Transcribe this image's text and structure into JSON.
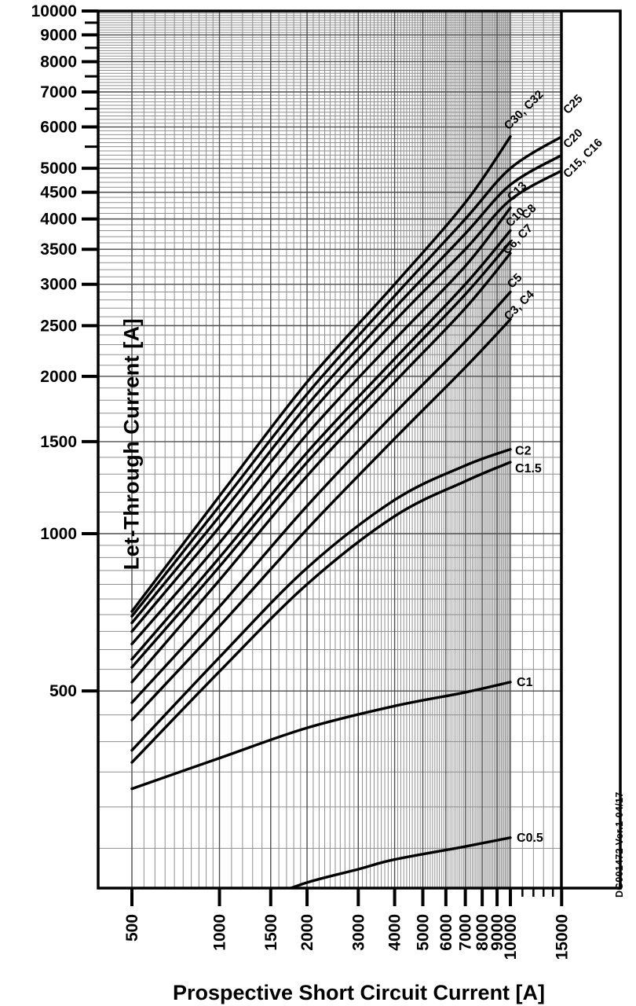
{
  "figure": {
    "y_axis_title": "Let-Through Current [A]",
    "x_axis_title": "Prospective Short Circuit Current [A]",
    "side_note": "DG001472  Ver.1-04/17"
  },
  "chart_data": {
    "type": "line",
    "title": "",
    "xlabel": "Prospective Short Circuit Current [A]",
    "ylabel": "Let-Through Current [A]",
    "x_scale": "log",
    "y_scale": "log",
    "xlim": [
      500,
      15000
    ],
    "ylim": [
      200,
      10000
    ],
    "grid": "log major+minor, both axes",
    "legend_position": "labels at curve ends",
    "x_ticks": [
      500,
      1000,
      1500,
      2000,
      3000,
      4000,
      5000,
      6000,
      7000,
      8000,
      9000,
      10000,
      15000
    ],
    "x_minor_ticks": [
      11000,
      12000,
      13000,
      14000
    ],
    "y_ticks": [
      10000,
      9000,
      8000,
      7000,
      6000,
      5000,
      4500,
      4000,
      3500,
      3000,
      2500,
      2000,
      1500,
      1000,
      500
    ],
    "y_minor_ticks": [
      9500,
      8500,
      7500,
      6500,
      5500
    ],
    "colors": {
      "curve": "#000000",
      "grid_minor": "#8f8f8f",
      "grid_major": "#4d4d4d",
      "frame": "#000000",
      "text": "#000000"
    },
    "series": [
      {
        "name": "C30, C32",
        "label_rotated": true,
        "label_dx": -2,
        "label_dy": -8,
        "points": [
          [
            500,
            710
          ],
          [
            1000,
            1180
          ],
          [
            2000,
            1950
          ],
          [
            4000,
            3000
          ],
          [
            7000,
            4300
          ],
          [
            10000,
            5750
          ]
        ]
      },
      {
        "name": "C25",
        "label_rotated": true,
        "label_dx": 8,
        "label_dy": -28,
        "points": [
          [
            500,
            695
          ],
          [
            1000,
            1130
          ],
          [
            2000,
            1850
          ],
          [
            4000,
            2850
          ],
          [
            7000,
            4000
          ],
          [
            10000,
            5000
          ],
          [
            15000,
            5750
          ]
        ]
      },
      {
        "name": "C20",
        "label_rotated": true,
        "label_dx": 8,
        "label_dy": -8,
        "points": [
          [
            500,
            675
          ],
          [
            1000,
            1080
          ],
          [
            2000,
            1760
          ],
          [
            4000,
            2700
          ],
          [
            7000,
            3750
          ],
          [
            10000,
            4650
          ],
          [
            15000,
            5300
          ]
        ]
      },
      {
        "name": "C15, C16",
        "label_rotated": true,
        "label_dx": 8,
        "label_dy": 10,
        "points": [
          [
            500,
            650
          ],
          [
            1000,
            1030
          ],
          [
            2000,
            1670
          ],
          [
            4000,
            2550
          ],
          [
            7000,
            3500
          ],
          [
            10000,
            4350
          ],
          [
            15000,
            4950
          ]
        ]
      },
      {
        "name": "C13",
        "label_rotated": true,
        "label_dx": 2,
        "label_dy": -8,
        "points": [
          [
            500,
            615
          ],
          [
            1000,
            960
          ],
          [
            2000,
            1550
          ],
          [
            4000,
            2350
          ],
          [
            7000,
            3250
          ],
          [
            10000,
            4200
          ]
        ]
      },
      {
        "name": "C10",
        "label_rotated": true,
        "label_dx": 0,
        "label_dy": -4,
        "points": [
          [
            500,
            575
          ],
          [
            1000,
            900
          ],
          [
            2000,
            1430
          ],
          [
            4000,
            2160
          ],
          [
            7000,
            3000
          ],
          [
            10000,
            3800
          ]
        ]
      },
      {
        "name": "C8",
        "label_rotated": true,
        "label_dx": 20,
        "label_dy": -28,
        "points": [
          [
            500,
            555
          ],
          [
            1000,
            865
          ],
          [
            2000,
            1370
          ],
          [
            4000,
            2070
          ],
          [
            7000,
            2870
          ],
          [
            10000,
            3620
          ]
        ]
      },
      {
        "name": "C6, C7",
        "label_rotated": true,
        "label_dx": -4,
        "label_dy": 2,
        "points": [
          [
            500,
            520
          ],
          [
            1000,
            815
          ],
          [
            2000,
            1290
          ],
          [
            4000,
            1950
          ],
          [
            7000,
            2700
          ],
          [
            10000,
            3440
          ]
        ]
      },
      {
        "name": "C5",
        "label_rotated": true,
        "label_dx": 2,
        "label_dy": -4,
        "points": [
          [
            500,
            475
          ],
          [
            1000,
            725
          ],
          [
            2000,
            1130
          ],
          [
            4000,
            1700
          ],
          [
            7000,
            2330
          ],
          [
            10000,
            2900
          ]
        ]
      },
      {
        "name": "C3, C4",
        "label_rotated": true,
        "label_dx": -2,
        "label_dy": 2,
        "points": [
          [
            500,
            440
          ],
          [
            1000,
            665
          ],
          [
            2000,
            1020
          ],
          [
            4000,
            1520
          ],
          [
            7000,
            2080
          ],
          [
            10000,
            2570
          ]
        ]
      },
      {
        "name": "C2",
        "label_rotated": false,
        "label_dx": 6,
        "label_dy": 2,
        "points": [
          [
            500,
            385
          ],
          [
            1000,
            580
          ],
          [
            2000,
            860
          ],
          [
            4000,
            1160
          ],
          [
            7000,
            1350
          ],
          [
            10000,
            1450
          ]
        ]
      },
      {
        "name": "C1.5",
        "label_rotated": false,
        "label_dx": 6,
        "label_dy": 8,
        "points": [
          [
            500,
            365
          ],
          [
            1000,
            545
          ],
          [
            2000,
            800
          ],
          [
            4000,
            1080
          ],
          [
            7000,
            1260
          ],
          [
            10000,
            1370
          ]
        ]
      },
      {
        "name": "C1",
        "label_rotated": false,
        "label_dx": 8,
        "label_dy": 0,
        "points": [
          [
            500,
            325
          ],
          [
            1000,
            372
          ],
          [
            2000,
            425
          ],
          [
            4000,
            468
          ],
          [
            7000,
            497
          ],
          [
            10000,
            520
          ]
        ]
      },
      {
        "name": "C0.5",
        "label_rotated": false,
        "label_dx": 8,
        "label_dy": 0,
        "points": [
          [
            1400,
            200
          ],
          [
            2000,
            215
          ],
          [
            3000,
            228
          ],
          [
            4000,
            238
          ],
          [
            7000,
            252
          ],
          [
            10000,
            262
          ]
        ]
      }
    ]
  }
}
